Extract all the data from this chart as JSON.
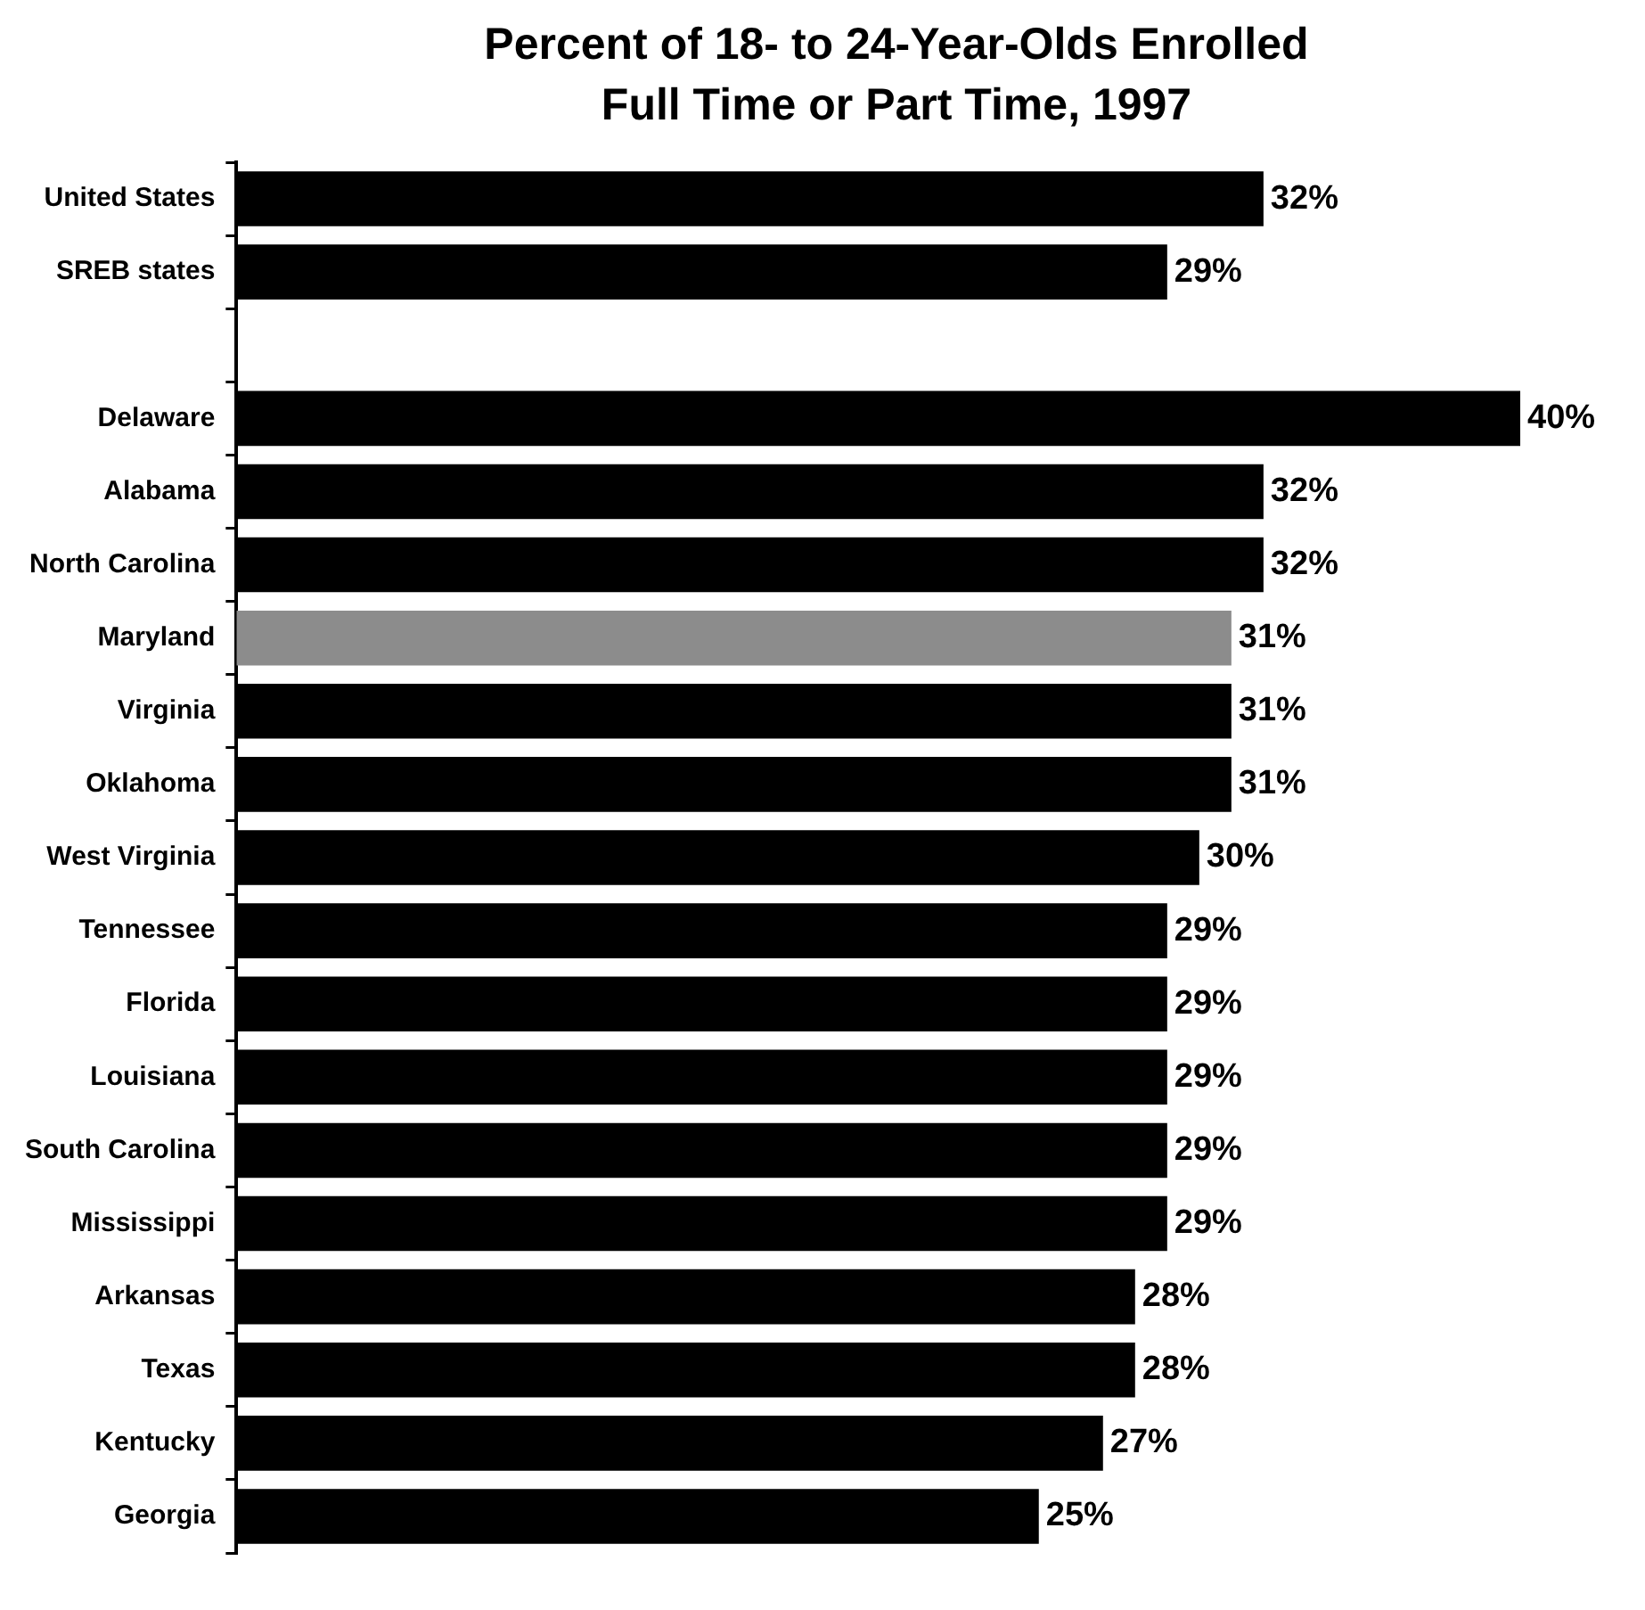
{
  "chart_data": {
    "type": "bar",
    "orientation": "horizontal",
    "title": "Percent of 18- to 24-Year-Olds Enrolled Full Time or Part Time, 1997",
    "categories": [
      "United States",
      "SREB states",
      null,
      "Delaware",
      "Alabama",
      "North Carolina",
      "Maryland",
      "Virginia",
      "Oklahoma",
      "West Virginia",
      "Tennessee",
      "Florida",
      "Louisiana",
      "South Carolina",
      "Mississippi",
      "Arkansas",
      "Texas",
      "Kentucky",
      "Georgia"
    ],
    "values": [
      32,
      29,
      null,
      40,
      32,
      32,
      31,
      31,
      31,
      30,
      29,
      29,
      29,
      29,
      29,
      28,
      28,
      27,
      25
    ],
    "value_labels": [
      "32%",
      "29%",
      null,
      "40%",
      "32%",
      "32%",
      "31%",
      "31%",
      "31%",
      "30%",
      "29%",
      "29%",
      "29%",
      "29%",
      "29%",
      "28%",
      "28%",
      "27%",
      "25%"
    ],
    "colors": [
      "#000000",
      "#000000",
      "#000000",
      "#000000",
      "#000000",
      "#000000",
      "#8c8c8c",
      "#000000",
      "#000000",
      "#000000",
      "#000000",
      "#000000",
      "#000000",
      "#000000",
      "#000000",
      "#000000",
      "#000000",
      "#000000",
      "#000000"
    ],
    "grid": false,
    "legend": false
  }
}
